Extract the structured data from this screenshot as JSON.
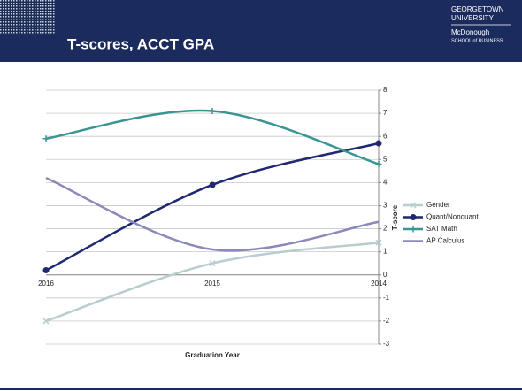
{
  "logo": [
    "GEORGETOWN",
    "UNIVERSITY",
    "McDonough",
    "SCHOOL of BUSINESS"
  ],
  "chart_data": {
    "type": "line",
    "title": "T-scores, ACCT GPA",
    "categories": [
      "2016",
      "2015",
      "2014"
    ],
    "series": [
      {
        "name": "Gender",
        "color": "#b9cdd0",
        "marker": "x",
        "values": [
          -2.0,
          0.5,
          1.4
        ]
      },
      {
        "name": "Quant/Nonquant",
        "color": "#1f2870",
        "marker": "circle",
        "values": [
          0.2,
          3.9,
          5.7
        ]
      },
      {
        "name": "SAT Math",
        "color": "#3a9494",
        "marker": "plus",
        "values": [
          5.9,
          7.1,
          4.8
        ]
      },
      {
        "name": "AP Calculus",
        "color": "#8a89bb",
        "marker": "none",
        "values": [
          4.2,
          1.1,
          2.3
        ]
      }
    ],
    "smooth": true,
    "xlabel": "Graduation Year",
    "ylabel": "T-score",
    "ylim": [
      -3,
      8
    ],
    "yticks": [
      -3,
      -2,
      -1,
      0,
      1,
      2,
      3,
      4,
      5,
      6,
      7,
      8
    ],
    "grid": true,
    "legend": "right"
  }
}
